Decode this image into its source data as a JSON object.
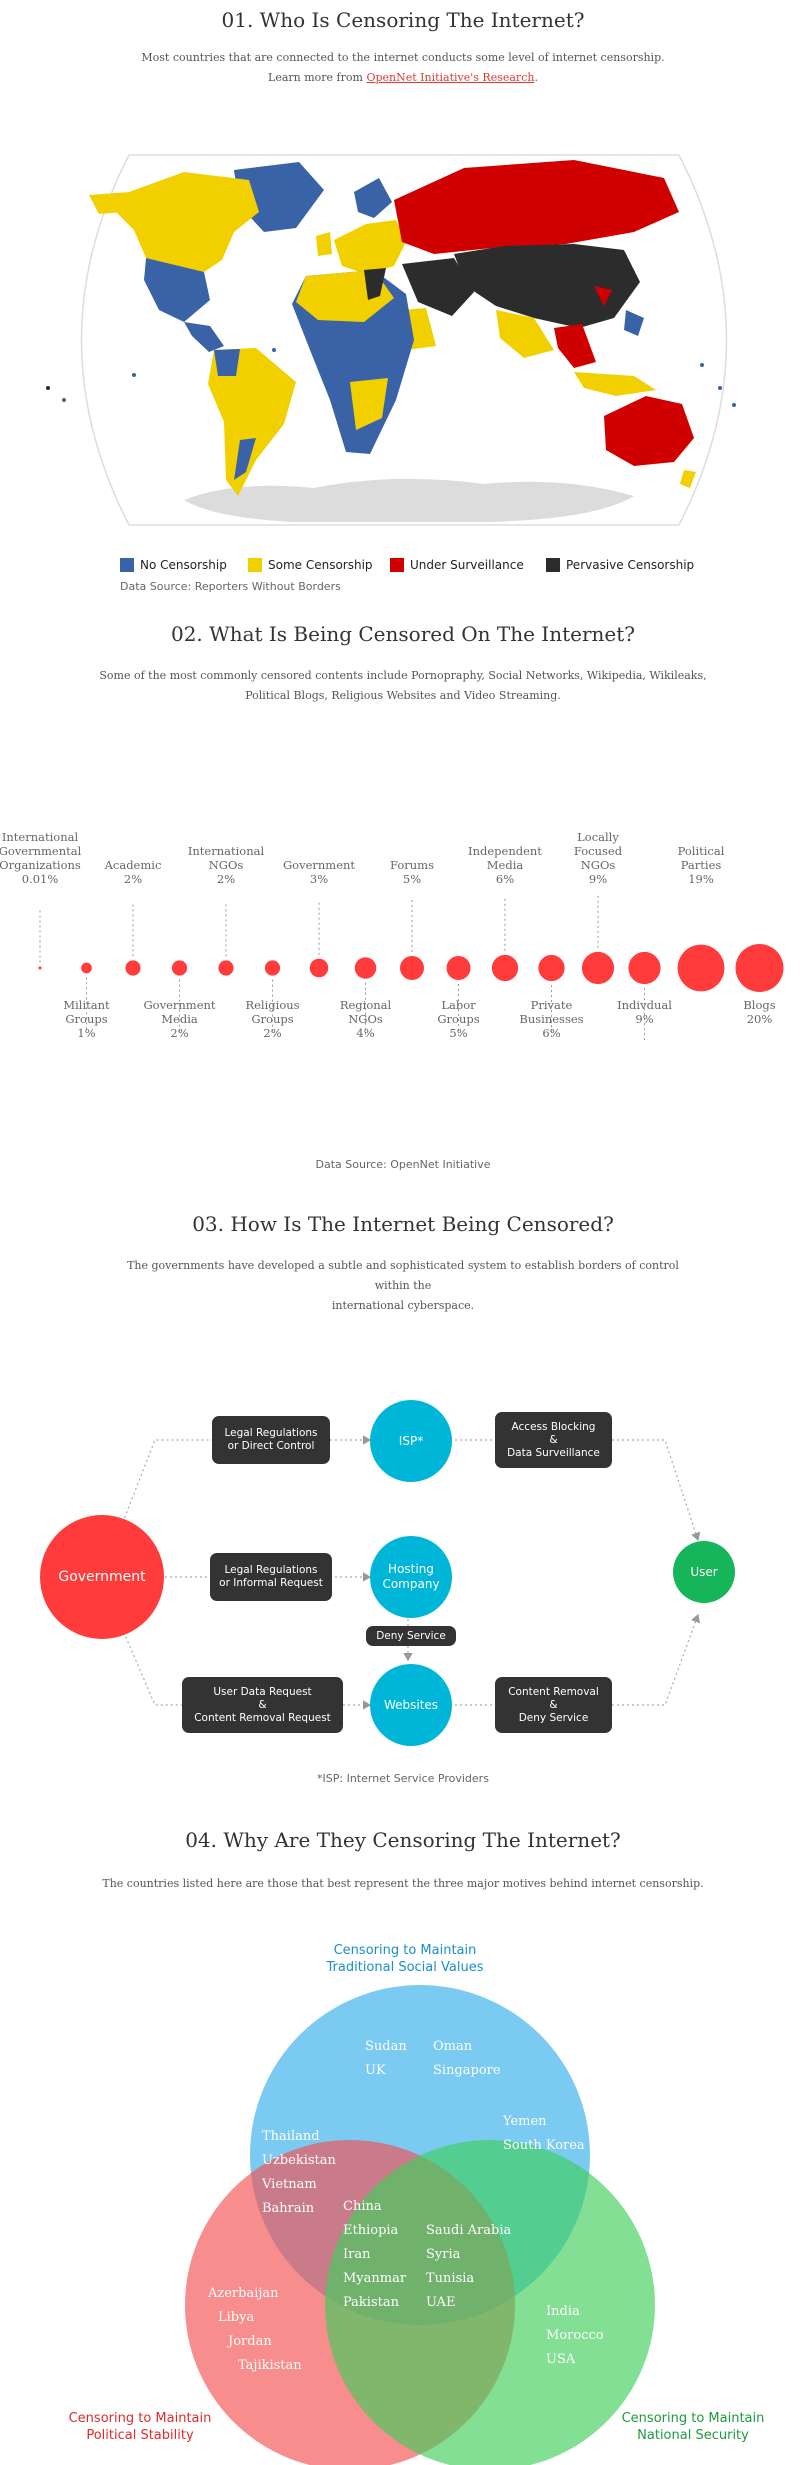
{
  "section1": {
    "title": "01. Who Is Censoring The Internet?",
    "desc_line1": "Most countries that are connected to the internet conducts some level of internet censorship.",
    "desc_line2_prefix": "Learn more from ",
    "desc_link": "OpenNet Initiative's Research",
    "desc_line2_suffix": ".",
    "legend": [
      {
        "label": "No Censorship",
        "color": "#3a63a7"
      },
      {
        "label": "Some Censorship",
        "color": "#f2d000"
      },
      {
        "label": "Under Surveillance",
        "color": "#d10000"
      },
      {
        "label": "Pervasive Censorship",
        "color": "#2c2c2c"
      }
    ],
    "source": "Data Source: Reporters Without Borders"
  },
  "section2": {
    "title": "02. What Is Being Censored On The Internet?",
    "desc_line1": "Some of the most commonly censored contents include Pornopraphy, Social Networks, Wikipedia, Wikileaks,",
    "desc_line2": "Political Blogs, Religious Websites and Video Streaming.",
    "source": "Data Source: OpenNet Initiative",
    "chart_data": {
      "type": "bubble",
      "categories": [
        "International Governmental Organizations",
        "Militant Groups",
        "Academic",
        "Government Media",
        "International NGOs",
        "Religious Groups",
        "Government",
        "Regional NGOs",
        "Forums",
        "Labor Groups",
        "Independent Media",
        "Private Businesses",
        "Locally Focused NGOs",
        "Indivdual",
        "Political Parties",
        "Blogs"
      ],
      "values": [
        0.01,
        1,
        2,
        2,
        2,
        2,
        3,
        4,
        5,
        5,
        6,
        6,
        9,
        9,
        19,
        20
      ],
      "labels": [
        {
          "lines": [
            "International",
            "Governmental",
            "Organizations"
          ],
          "value": "0.01%"
        },
        {
          "lines": [
            "Militant",
            "Groups"
          ],
          "value": "1%"
        },
        {
          "lines": [
            "Academic"
          ],
          "value": "2%"
        },
        {
          "lines": [
            "Government",
            "Media"
          ],
          "value": "2%"
        },
        {
          "lines": [
            "International",
            "NGOs"
          ],
          "value": "2%"
        },
        {
          "lines": [
            "Religious",
            "Groups"
          ],
          "value": "2%"
        },
        {
          "lines": [
            "Government"
          ],
          "value": "3%"
        },
        {
          "lines": [
            "Regional",
            "NGOs"
          ],
          "value": "4%"
        },
        {
          "lines": [
            "Forums"
          ],
          "value": "5%"
        },
        {
          "lines": [
            "Labor",
            "Groups"
          ],
          "value": "5%"
        },
        {
          "lines": [
            "Independent",
            "Media"
          ],
          "value": "6%"
        },
        {
          "lines": [
            "Private",
            "Businesses"
          ],
          "value": "6%"
        },
        {
          "lines": [
            "Locally",
            "Focused",
            "NGOs"
          ],
          "value": "9%"
        },
        {
          "lines": [
            "Indivdual"
          ],
          "value": "9%"
        },
        {
          "lines": [
            "Political",
            "Parties"
          ],
          "value": "19%"
        },
        {
          "lines": [
            "Blogs"
          ],
          "value": "20%"
        }
      ],
      "color": "#ff3b3b"
    }
  },
  "section3": {
    "title": "03. How Is The Internet Being Censored?",
    "desc_line1": "The governments have developed a subtle and sophisticated system to establish borders of control within the",
    "desc_line2": "international cyberspace.",
    "nodes": {
      "government": "Government",
      "isp": "ISP*",
      "hosting_line1": "Hosting",
      "hosting_line2": "Company",
      "websites": "Websites",
      "user": "User"
    },
    "boxes": {
      "legal_direct_1": "Legal Regulations",
      "legal_direct_2": "or Direct Control",
      "legal_informal_1": "Legal Regulations",
      "legal_informal_2": "or Informal Request",
      "user_data_1": "User Data Request",
      "user_data_2": "&",
      "user_data_3": "Content Removal Request",
      "access_1": "Access Blocking",
      "access_2": "&",
      "access_3": "Data Surveillance",
      "deny": "Deny Service",
      "removal_1": "Content Removal",
      "removal_2": "&",
      "removal_3": "Deny Service"
    },
    "footnote": "*ISP: Internet Service Providers",
    "colors": {
      "government": "#ff3b3b",
      "node": "#00b6d8",
      "user": "#16b55a",
      "box": "#333333"
    }
  },
  "section4": {
    "title": "04. Why Are They Censoring The Internet?",
    "desc": "The countries listed here are those that best represent the three major motives behind internet censorship.",
    "sets": {
      "social": {
        "title_line1": "Censoring to Maintain",
        "title_line2": "Traditional Social Values",
        "color": "#1a8fc9"
      },
      "political": {
        "title_line1": "Censoring to Maintain",
        "title_line2": "Political Stability",
        "color": "#e02a2a"
      },
      "security": {
        "title_line1": "Censoring to Maintain",
        "title_line2": "National Security",
        "color": "#1f9a3c"
      }
    },
    "groups": {
      "social_only_a": [
        "Sudan",
        "UK"
      ],
      "social_only_b": [
        "Oman",
        "Singapore"
      ],
      "social_political": [
        "Thailand",
        "Uzbekistan",
        "Vietnam",
        "Bahrain"
      ],
      "social_security": [
        "Yemen",
        "South Korea"
      ],
      "all_a": [
        "China",
        "Ethiopia",
        "Iran",
        "Myanmar",
        "Pakistan"
      ],
      "all_b": [
        "Saudi Arabia",
        "Syria",
        "Tunisia",
        "UAE"
      ],
      "political_only": [
        "Azerbaijan",
        "Libya",
        "Jordan",
        "Tajikistan"
      ],
      "security_only": [
        "India",
        "Morocco",
        "USA"
      ]
    }
  }
}
